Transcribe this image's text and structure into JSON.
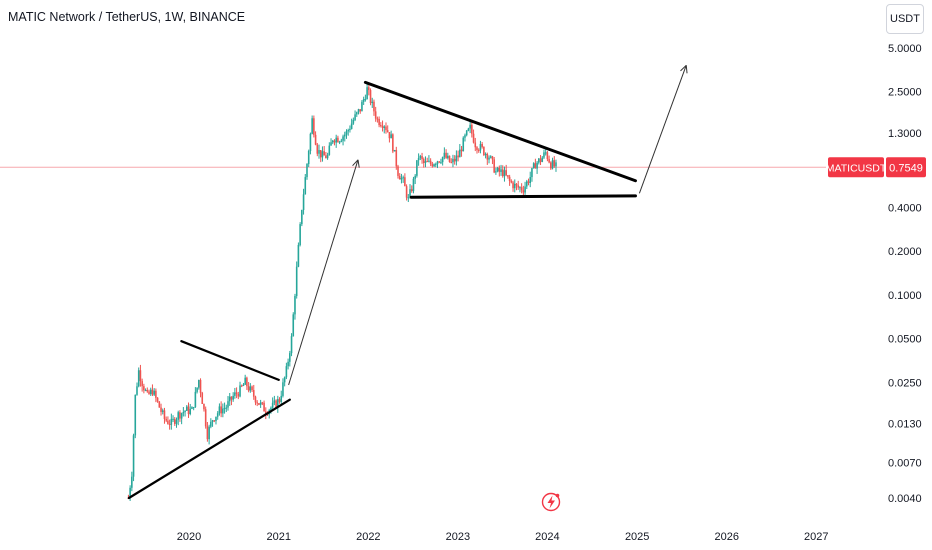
{
  "header": {
    "title": "MATIC Network / TetherUS, 1W, BINANCE",
    "currency_label": "USDT"
  },
  "price_tag": {
    "symbol": "MATICUSDT",
    "value": "0.7549",
    "price": 0.7549,
    "color": "#f23645"
  },
  "colors": {
    "up": "#26a69a",
    "down": "#ef5350",
    "line": "#000000",
    "axis_text": "#131722",
    "price_line": "#f7a8ad"
  },
  "watermark_icon": "lightning-bolt-icon",
  "chart_data": {
    "type": "candlestick",
    "title": "MATIC Network / TetherUS, 1W, BINANCE",
    "y_scale": "log",
    "x_range": [
      "2019-04-22",
      "2027-08-01"
    ],
    "y_range": [
      0.003,
      8.5
    ],
    "x_ticks": [
      {
        "label": "2020",
        "date": "2020-01-01"
      },
      {
        "label": "2021",
        "date": "2021-01-01"
      },
      {
        "label": "2022",
        "date": "2022-01-01"
      },
      {
        "label": "2023",
        "date": "2023-01-01"
      },
      {
        "label": "2024",
        "date": "2024-01-01"
      },
      {
        "label": "2025",
        "date": "2025-01-01"
      },
      {
        "label": "2026",
        "date": "2026-01-01"
      },
      {
        "label": "2027",
        "date": "2027-01-01"
      }
    ],
    "y_ticks": [
      {
        "label": "5.0000",
        "value": 5.0
      },
      {
        "label": "2.5000",
        "value": 2.5
      },
      {
        "label": "1.3000",
        "value": 1.3
      },
      {
        "label": "0.4000",
        "value": 0.4
      },
      {
        "label": "0.2000",
        "value": 0.2
      },
      {
        "label": "0.1000",
        "value": 0.1
      },
      {
        "label": "0.0500",
        "value": 0.05
      },
      {
        "label": "0.0250",
        "value": 0.025
      },
      {
        "label": "0.0130",
        "value": 0.013
      },
      {
        "label": "0.0070",
        "value": 0.007
      },
      {
        "label": "0.0040",
        "value": 0.004
      }
    ],
    "price_path": [
      [
        "2019-04-29",
        0.004
      ],
      [
        "2019-05-13",
        0.006
      ],
      [
        "2019-05-27",
        0.02
      ],
      [
        "2019-06-10",
        0.03
      ],
      [
        "2019-06-24",
        0.025
      ],
      [
        "2019-07-15",
        0.02
      ],
      [
        "2019-08-05",
        0.022
      ],
      [
        "2019-08-26",
        0.018
      ],
      [
        "2019-09-23",
        0.014
      ],
      [
        "2019-10-21",
        0.013
      ],
      [
        "2019-11-18",
        0.015
      ],
      [
        "2019-12-16",
        0.016
      ],
      [
        "2020-01-13",
        0.016
      ],
      [
        "2020-02-10",
        0.026
      ],
      [
        "2020-03-02",
        0.016
      ],
      [
        "2020-03-16",
        0.011
      ],
      [
        "2020-04-06",
        0.014
      ],
      [
        "2020-05-04",
        0.016
      ],
      [
        "2020-06-01",
        0.017
      ],
      [
        "2020-06-29",
        0.02
      ],
      [
        "2020-07-27",
        0.022
      ],
      [
        "2020-08-17",
        0.025
      ],
      [
        "2020-09-14",
        0.021
      ],
      [
        "2020-10-12",
        0.018
      ],
      [
        "2020-11-09",
        0.016
      ],
      [
        "2020-12-07",
        0.017
      ],
      [
        "2021-01-04",
        0.019
      ],
      [
        "2021-02-01",
        0.03
      ],
      [
        "2021-02-22",
        0.05
      ],
      [
        "2021-03-15",
        0.15
      ],
      [
        "2021-04-05",
        0.4
      ],
      [
        "2021-04-26",
        0.8
      ],
      [
        "2021-05-17",
        1.6
      ],
      [
        "2021-06-07",
        1.0
      ],
      [
        "2021-06-28",
        0.9
      ],
      [
        "2021-07-19",
        0.9
      ],
      [
        "2021-08-09",
        1.2
      ],
      [
        "2021-09-06",
        1.2
      ],
      [
        "2021-10-04",
        1.3
      ],
      [
        "2021-11-01",
        1.6
      ],
      [
        "2021-11-29",
        1.9
      ],
      [
        "2021-12-27",
        2.6
      ],
      [
        "2022-01-17",
        2.0
      ],
      [
        "2022-02-07",
        1.6
      ],
      [
        "2022-03-07",
        1.5
      ],
      [
        "2022-04-04",
        1.2
      ],
      [
        "2022-05-02",
        0.7
      ],
      [
        "2022-05-23",
        0.6
      ],
      [
        "2022-06-13",
        0.45
      ],
      [
        "2022-07-04",
        0.6
      ],
      [
        "2022-07-25",
        0.9
      ],
      [
        "2022-08-15",
        0.8
      ],
      [
        "2022-09-12",
        0.8
      ],
      [
        "2022-10-10",
        0.85
      ],
      [
        "2022-11-07",
        0.9
      ],
      [
        "2022-12-05",
        0.8
      ],
      [
        "2023-01-02",
        0.9
      ],
      [
        "2023-01-30",
        1.2
      ],
      [
        "2023-02-20",
        1.4
      ],
      [
        "2023-03-13",
        1.1
      ],
      [
        "2023-04-10",
        1.0
      ],
      [
        "2023-05-08",
        0.9
      ],
      [
        "2023-06-05",
        0.7
      ],
      [
        "2023-07-03",
        0.7
      ],
      [
        "2023-07-31",
        0.6
      ],
      [
        "2023-08-28",
        0.55
      ],
      [
        "2023-09-25",
        0.54
      ],
      [
        "2023-10-23",
        0.65
      ],
      [
        "2023-11-13",
        0.8
      ],
      [
        "2023-12-04",
        0.85
      ],
      [
        "2023-12-25",
        0.95
      ],
      [
        "2024-01-15",
        0.8
      ],
      [
        "2024-02-05",
        0.7549
      ]
    ],
    "drawings": [
      {
        "name": "lower-triangle-upper-line",
        "kind": "line",
        "start": [
          "2019-12-01",
          0.048
        ],
        "end": [
          "2021-01-01",
          0.026
        ]
      },
      {
        "name": "lower-triangle-lower-line",
        "kind": "line",
        "start": [
          "2019-05-01",
          0.004
        ],
        "end": [
          "2021-02-15",
          0.019
        ]
      },
      {
        "name": "upper-triangle-resistance-line",
        "kind": "line",
        "start": [
          "2021-12-20",
          2.9
        ],
        "end": [
          "2024-12-25",
          0.61
        ]
      },
      {
        "name": "upper-triangle-support-line",
        "kind": "line",
        "start": [
          "2022-06-25",
          0.47
        ],
        "end": [
          "2024-12-25",
          0.48
        ]
      },
      {
        "name": "breakout-arrow-1",
        "kind": "arrow",
        "start": [
          "2021-02-10",
          0.024
        ],
        "end": [
          "2021-11-20",
          0.85
        ]
      },
      {
        "name": "breakout-arrow-2",
        "kind": "arrow",
        "start": [
          "2025-01-10",
          0.5
        ],
        "end": [
          "2025-07-20",
          3.8
        ]
      }
    ]
  }
}
